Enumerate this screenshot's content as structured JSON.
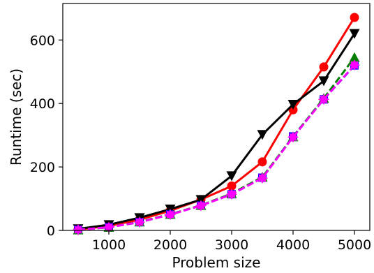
{
  "chart_data": {
    "type": "line",
    "title": "",
    "xlabel": "Problem size",
    "ylabel": "Runtime (sec)",
    "xlim": [
      250,
      5250
    ],
    "ylim": [
      0,
      715
    ],
    "xticks": [
      1000,
      2000,
      3000,
      4000,
      5000
    ],
    "yticks": [
      0,
      200,
      400,
      600
    ],
    "grid": false,
    "legend": "none",
    "x": [
      500,
      1000,
      1500,
      2000,
      2500,
      3000,
      3500,
      4000,
      4500,
      5000
    ],
    "series": [
      {
        "color": "#ff0000",
        "marker": "circle",
        "dash": "solid",
        "values": [
          3,
          14,
          34,
          62,
          97,
          140,
          216,
          380,
          515,
          671
        ]
      },
      {
        "color": "#000000",
        "marker": "triangle-down",
        "dash": "solid",
        "values": [
          5,
          18,
          40,
          67,
          97,
          172,
          302,
          397,
          471,
          620
        ]
      },
      {
        "color": "#0000ff",
        "marker": "square",
        "dash": "dashed",
        "values": [
          2,
          10,
          26,
          50,
          78,
          114,
          166,
          296,
          413,
          520
        ]
      },
      {
        "color": "#008000",
        "marker": "triangle-up",
        "dash": "dashed",
        "values": [
          2,
          10,
          27,
          51,
          79,
          116,
          168,
          295,
          416,
          545
        ]
      },
      {
        "color": "#ff00ff",
        "marker": "star",
        "dash": "dashed",
        "values": [
          2,
          10,
          26,
          50,
          78,
          114,
          165,
          294,
          413,
          521
        ]
      }
    ]
  }
}
